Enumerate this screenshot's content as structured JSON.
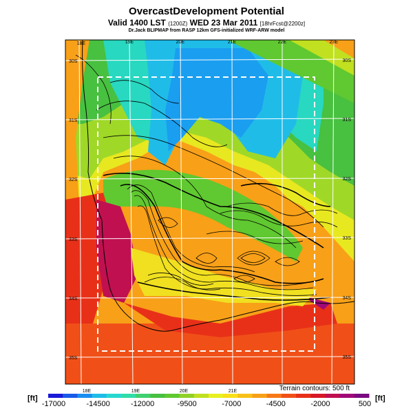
{
  "header": {
    "title": "OvercastDevelopment Potential",
    "subtitle_main": "Valid 1400 LST",
    "subtitle_small1": "(1200Z)",
    "subtitle_date": "WED 23 Mar 2011",
    "subtitle_small2": "[18hrFcst@2200z]",
    "credit": "Dr.Jack BLIPMAP from RASP 12km GFS-initialized WRF-ARW model"
  },
  "map": {
    "lon_labels_top": [
      "18E",
      "19E",
      "20E",
      "21E",
      "22E",
      "23E"
    ],
    "lon_labels_bottom": [
      "18E",
      "19E",
      "20E",
      "21E"
    ],
    "lat_labels_left": [
      "30S",
      "31S",
      "32S",
      "33S",
      "34S",
      "35S"
    ],
    "lat_labels_right": [
      "30S",
      "31S",
      "32S",
      "33S",
      "34S",
      "35S"
    ],
    "terrain_note": "Terrain contours: 500 ft"
  },
  "colorbar": {
    "unit_left": "[ft]",
    "unit_right": "[ft]",
    "tick_labels": [
      "-17000",
      "-14500",
      "-12000",
      "-9500",
      "-7000",
      "-4500",
      "-2000",
      "500"
    ],
    "colors": [
      "#1a1ad8",
      "#1a5ae8",
      "#1a8ef0",
      "#20bce8",
      "#28d8d0",
      "#30dca8",
      "#40d070",
      "#48c040",
      "#60c830",
      "#90d028",
      "#c0e020",
      "#e8f020",
      "#f8e018",
      "#f8c018",
      "#f8a018",
      "#f87818",
      "#f05018",
      "#e83018",
      "#d81828",
      "#c01050",
      "#a00878",
      "#7a0a80"
    ]
  }
}
